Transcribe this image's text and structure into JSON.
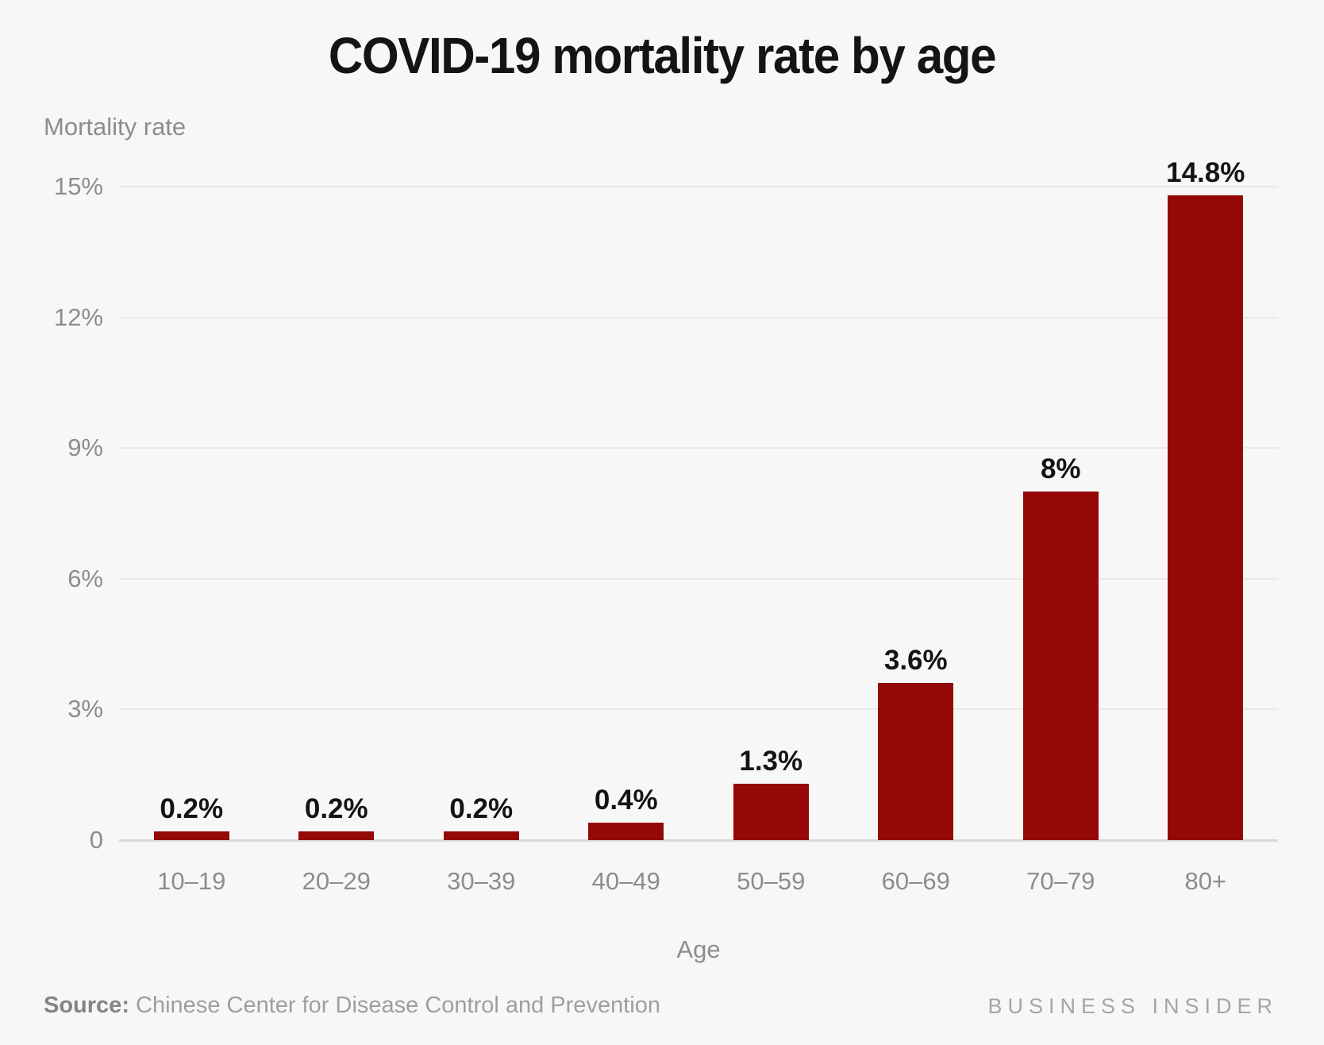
{
  "title": "COVID-19 mortality rate by age",
  "chart_data": {
    "type": "bar",
    "title": "COVID-19 mortality rate by age",
    "xlabel": "Age",
    "ylabel": "Mortality rate",
    "categories": [
      "10–19",
      "20–29",
      "30–39",
      "40–49",
      "50–59",
      "60–69",
      "70–79",
      "80+"
    ],
    "values": [
      0.2,
      0.2,
      0.2,
      0.4,
      1.3,
      3.6,
      8,
      14.8
    ],
    "value_labels": [
      "0.2%",
      "0.2%",
      "0.2%",
      "0.4%",
      "1.3%",
      "3.6%",
      "8%",
      "14.8%"
    ],
    "ylim": [
      0,
      15
    ],
    "yticks": [
      0,
      3,
      6,
      9,
      12,
      15
    ],
    "ytick_labels": [
      "0",
      "3%",
      "6%",
      "9%",
      "12%",
      "15%"
    ],
    "grid": "horizontal",
    "legend": "none",
    "bar_color": "#940808"
  },
  "footer": {
    "source_label": "Source:",
    "source_text": " Chinese Center for Disease Control and Prevention",
    "brand": "BUSINESS INSIDER"
  },
  "colors": {
    "background": "#f7f7f7",
    "bar": "#940808",
    "title_text": "#141414",
    "axis_text": "#8d8d8d",
    "gridline": "#e9e9e9",
    "zero_line": "#d8d8d8"
  }
}
